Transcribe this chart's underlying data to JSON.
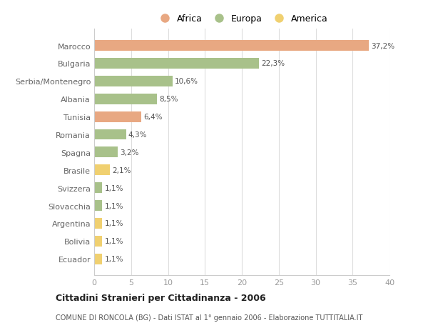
{
  "categories": [
    "Ecuador",
    "Bolivia",
    "Argentina",
    "Slovacchia",
    "Svizzera",
    "Brasile",
    "Spagna",
    "Romania",
    "Tunisia",
    "Albania",
    "Serbia/Montenegro",
    "Bulgaria",
    "Marocco"
  ],
  "values": [
    1.1,
    1.1,
    1.1,
    1.1,
    1.1,
    2.1,
    3.2,
    4.3,
    6.4,
    8.5,
    10.6,
    22.3,
    37.2
  ],
  "continents": [
    "America",
    "America",
    "America",
    "Europa",
    "Europa",
    "America",
    "Europa",
    "Europa",
    "Africa",
    "Europa",
    "Europa",
    "Europa",
    "Africa"
  ],
  "colors": {
    "Africa": "#E8A882",
    "Europa": "#A8C18A",
    "America": "#F0D070"
  },
  "label_values": [
    "1,1%",
    "1,1%",
    "1,1%",
    "1,1%",
    "1,1%",
    "2,1%",
    "3,2%",
    "4,3%",
    "6,4%",
    "8,5%",
    "10,6%",
    "22,3%",
    "37,2%"
  ],
  "title1": "Cittadini Stranieri per Cittadinanza - 2006",
  "title2": "COMUNE DI RONCOLA (BG) - Dati ISTAT al 1° gennaio 2006 - Elaborazione TUTTITALIA.IT",
  "legend_order": [
    "Africa",
    "Europa",
    "America"
  ],
  "xlim": [
    0,
    40
  ],
  "xticks": [
    0,
    5,
    10,
    15,
    20,
    25,
    30,
    35,
    40
  ],
  "background_color": "#ffffff",
  "grid_color": "#dddddd",
  "bar_height": 0.6
}
